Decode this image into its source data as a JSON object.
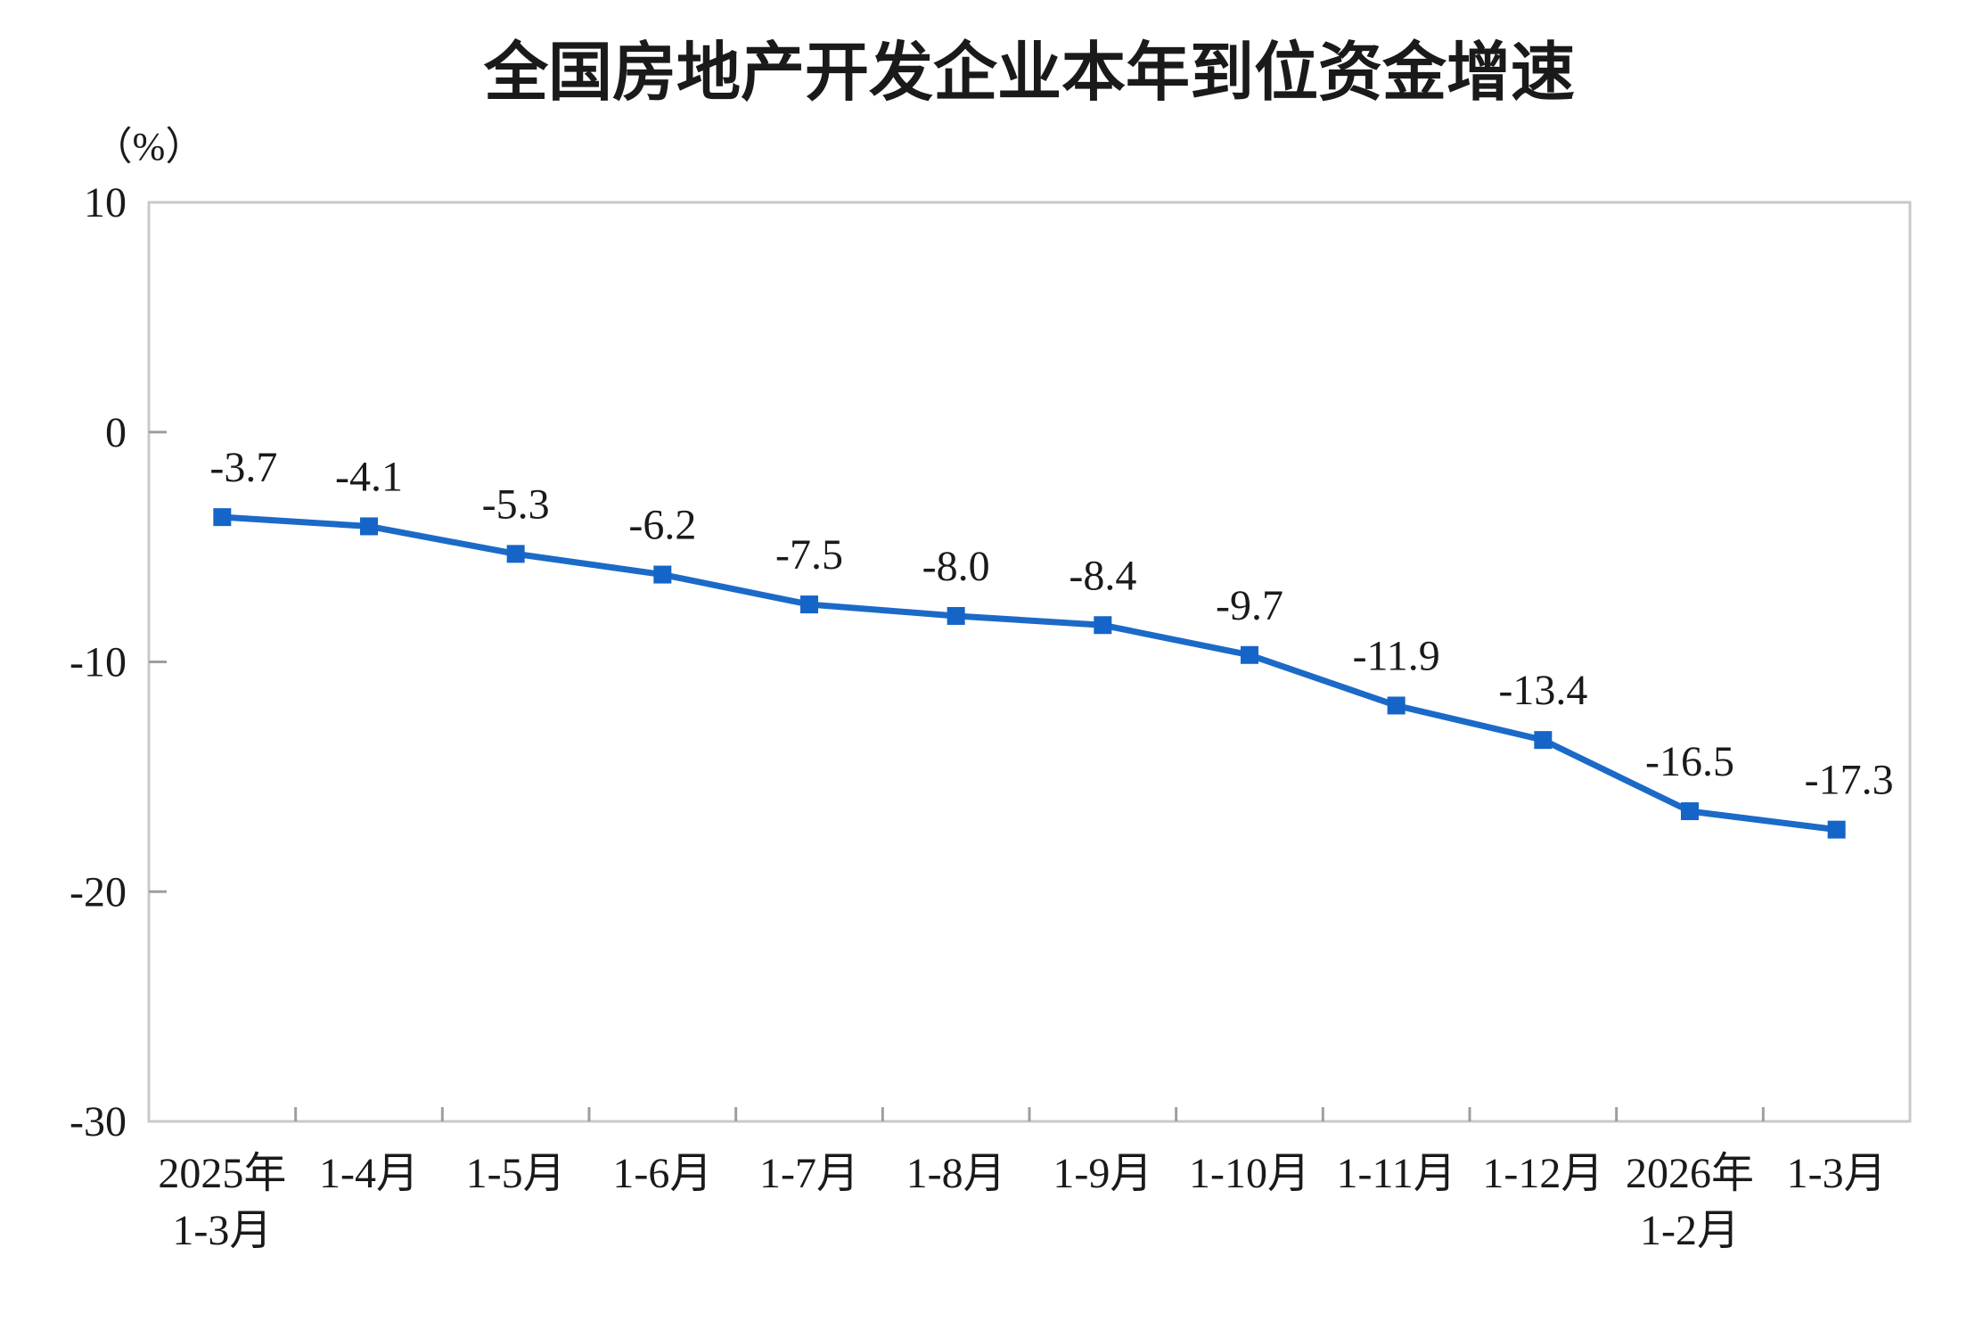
{
  "title": "全国房地产开发企业本年到位资金增速",
  "chart_data": {
    "type": "line",
    "title": "全国房地产开发企业本年到位资金增速",
    "unit_label": "（%）",
    "categories": [
      "2025年\n1-3月",
      "1-4月",
      "1-5月",
      "1-6月",
      "1-7月",
      "1-8月",
      "1-9月",
      "1-10月",
      "1-11月",
      "1-12月",
      "2026年\n1-2月",
      "1-3月"
    ],
    "values": [
      -3.7,
      -4.1,
      -5.3,
      -6.2,
      -7.5,
      -8.0,
      -8.4,
      -9.7,
      -11.9,
      -13.4,
      -16.5,
      -17.3
    ],
    "data_labels": [
      "-3.7",
      "-4.1",
      "-5.3",
      "-6.2",
      "-7.5",
      "-8.0",
      "-8.4",
      "-9.7",
      "-11.9",
      "-13.4",
      "-16.5",
      "-17.3"
    ],
    "xlabel": "",
    "ylabel": "（%）",
    "ylim": [
      -30,
      10
    ],
    "y_ticks": [
      10,
      0,
      -10,
      -20,
      -30
    ],
    "y_tick_labels": [
      "10",
      "0",
      "-10",
      "-20",
      "-30"
    ],
    "grid": false,
    "legend_position": "none",
    "marker": "square",
    "colors": {
      "line": "#1B6AC8",
      "marker": "#1565C8",
      "plot_border": "#C9C9C9",
      "tick": "#9E9E9E",
      "text": "#1A1A1A"
    }
  }
}
